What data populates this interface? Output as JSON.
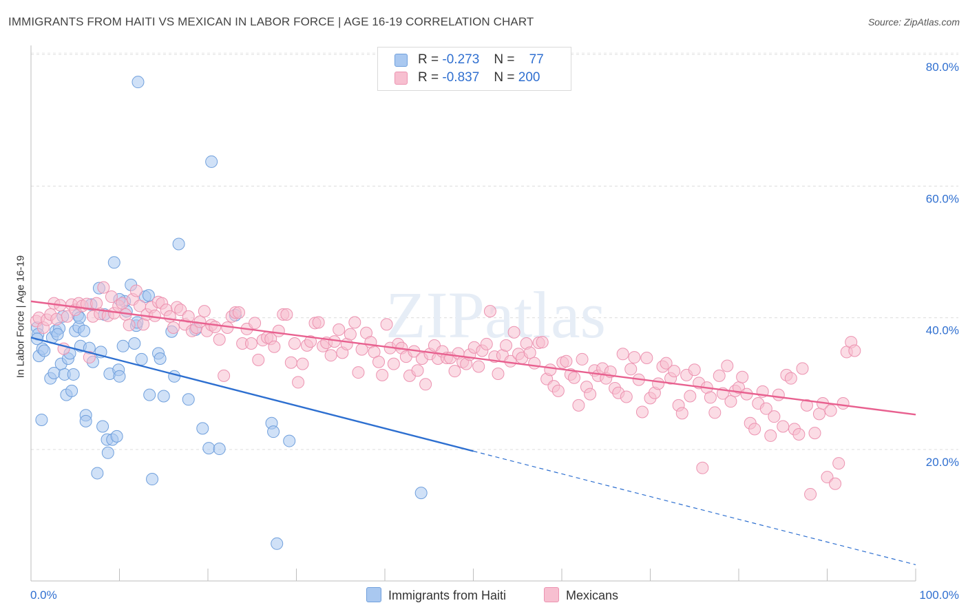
{
  "header": {
    "title": "IMMIGRANTS FROM HAITI VS MEXICAN IN LABOR FORCE | AGE 16-19 CORRELATION CHART",
    "source": "Source: ZipAtlas.com",
    "watermark": "ZIPatlas"
  },
  "legend": {
    "rows": [
      {
        "r_label": "R =",
        "r_value": "-0.273",
        "n_label": "N =",
        "n_value": "77",
        "color": "#a9c8f0"
      },
      {
        "r_label": "R =",
        "r_value": "-0.837",
        "n_label": "N =",
        "n_value": "200",
        "color": "#f7bfd0"
      }
    ]
  },
  "chart_data": {
    "type": "scatter",
    "xlabel": "",
    "ylabel": "In Labor Force | Age 16-19",
    "xlim": [
      0,
      100
    ],
    "ylim": [
      0,
      83
    ],
    "x_tick_labels": [
      {
        "value": 0,
        "label": "0.0%"
      },
      {
        "value": 100,
        "label": "100.0%"
      }
    ],
    "y_tick_labels": [
      {
        "value": 20,
        "label": "20.0%"
      },
      {
        "value": 40,
        "label": "40.0%"
      },
      {
        "value": 60,
        "label": "60.0%"
      },
      {
        "value": 80,
        "label": "80.0%"
      }
    ],
    "grid": "horizontal dashed",
    "legend_position": "top-center",
    "series": [
      {
        "name": "Immigrants from Haiti",
        "color": "#a9c8f0",
        "edge_color": "#6f9fdc",
        "trend_color": "#2d6fd0",
        "trend": {
          "x0": 0,
          "y0": 37.0,
          "x1": 100,
          "y1": 2.5,
          "solid_until": 50
        },
        "points": [
          [
            0.7,
            38.5
          ],
          [
            0.8,
            37.5
          ],
          [
            0.7,
            36.8
          ],
          [
            0.9,
            34.2
          ],
          [
            1.3,
            35.3
          ],
          [
            1.5,
            35.0
          ],
          [
            1.2,
            24.5
          ],
          [
            2.2,
            30.8
          ],
          [
            2.6,
            31.6
          ],
          [
            2.4,
            37.0
          ],
          [
            2.8,
            38.0
          ],
          [
            3.2,
            38.4
          ],
          [
            3.4,
            33.0
          ],
          [
            3.6,
            40.2
          ],
          [
            3.8,
            31.4
          ],
          [
            4.0,
            28.3
          ],
          [
            4.2,
            33.8
          ],
          [
            4.4,
            34.6
          ],
          [
            4.6,
            28.9
          ],
          [
            4.8,
            31.4
          ],
          [
            5.0,
            38.0
          ],
          [
            5.3,
            40.4
          ],
          [
            5.4,
            38.6
          ],
          [
            5.6,
            35.7
          ],
          [
            6.0,
            38.0
          ],
          [
            6.2,
            25.2
          ],
          [
            6.2,
            24.3
          ],
          [
            6.6,
            35.4
          ],
          [
            6.8,
            42.0
          ],
          [
            7.0,
            33.3
          ],
          [
            7.5,
            16.4
          ],
          [
            7.7,
            44.5
          ],
          [
            7.9,
            34.8
          ],
          [
            8.1,
            23.5
          ],
          [
            8.3,
            40.5
          ],
          [
            8.6,
            21.5
          ],
          [
            8.7,
            19.5
          ],
          [
            8.9,
            31.5
          ],
          [
            9.2,
            21.5
          ],
          [
            9.4,
            48.4
          ],
          [
            9.7,
            22.0
          ],
          [
            9.9,
            32.1
          ],
          [
            10.0,
            31.1
          ],
          [
            10.4,
            35.7
          ],
          [
            10.6,
            42.5
          ],
          [
            10.8,
            41.0
          ],
          [
            11.3,
            45.0
          ],
          [
            11.7,
            36.1
          ],
          [
            11.9,
            38.8
          ],
          [
            12.1,
            75.8
          ],
          [
            12.5,
            33.7
          ],
          [
            12.9,
            43.2
          ],
          [
            13.3,
            43.4
          ],
          [
            13.4,
            28.3
          ],
          [
            13.7,
            15.5
          ],
          [
            14.4,
            34.6
          ],
          [
            14.6,
            33.8
          ],
          [
            15.0,
            28.1
          ],
          [
            15.9,
            37.9
          ],
          [
            16.2,
            31.1
          ],
          [
            16.7,
            51.2
          ],
          [
            17.8,
            27.6
          ],
          [
            18.6,
            38.2
          ],
          [
            19.4,
            23.2
          ],
          [
            20.1,
            20.2
          ],
          [
            20.4,
            63.7
          ],
          [
            21.3,
            20.1
          ],
          [
            23.1,
            40.4
          ],
          [
            27.2,
            24.0
          ],
          [
            27.4,
            22.7
          ],
          [
            27.8,
            5.7
          ],
          [
            29.2,
            21.3
          ],
          [
            44.1,
            13.4
          ],
          [
            12.0,
            39.3
          ],
          [
            10.0,
            42.8
          ],
          [
            5.5,
            40.0
          ],
          [
            3.0,
            37.5
          ]
        ]
      },
      {
        "name": "Mexicans",
        "color": "#f7bfd0",
        "edge_color": "#ec92b0",
        "trend_color": "#e8608f",
        "trend": {
          "x0": 0,
          "y0": 42.5,
          "x1": 100,
          "y1": 25.3,
          "solid_until": 100
        },
        "points": [
          [
            0.6,
            39.5
          ],
          [
            0.9,
            40.0
          ],
          [
            1.4,
            38.5
          ],
          [
            1.8,
            39.7
          ],
          [
            2.2,
            40.5
          ],
          [
            2.6,
            42.2
          ],
          [
            2.9,
            39.8
          ],
          [
            3.3,
            41.9
          ],
          [
            3.7,
            35.3
          ],
          [
            4.1,
            40.2
          ],
          [
            4.6,
            42.0
          ],
          [
            5.0,
            41.2
          ],
          [
            5.4,
            42.2
          ],
          [
            5.8,
            41.8
          ],
          [
            6.3,
            42.1
          ],
          [
            6.6,
            34.0
          ],
          [
            7.0,
            40.2
          ],
          [
            7.4,
            42.2
          ],
          [
            7.8,
            40.6
          ],
          [
            8.2,
            44.6
          ],
          [
            8.7,
            40.3
          ],
          [
            9.1,
            43.2
          ],
          [
            9.4,
            40.7
          ],
          [
            9.9,
            41.8
          ],
          [
            10.3,
            42.2
          ],
          [
            10.7,
            40.5
          ],
          [
            11.1,
            38.9
          ],
          [
            11.5,
            42.8
          ],
          [
            11.9,
            44.1
          ],
          [
            12.3,
            41.8
          ],
          [
            12.7,
            39.0
          ],
          [
            13.1,
            40.5
          ],
          [
            13.6,
            41.6
          ],
          [
            14.0,
            40.3
          ],
          [
            14.4,
            42.4
          ],
          [
            14.8,
            42.2
          ],
          [
            15.3,
            41.2
          ],
          [
            15.7,
            40.2
          ],
          [
            16.1,
            38.5
          ],
          [
            16.5,
            41.6
          ],
          [
            16.9,
            41.2
          ],
          [
            17.4,
            39.0
          ],
          [
            17.8,
            40.2
          ],
          [
            18.2,
            38.0
          ],
          [
            18.7,
            38.5
          ],
          [
            19.1,
            39.4
          ],
          [
            19.6,
            41.0
          ],
          [
            19.9,
            38.0
          ],
          [
            20.4,
            38.9
          ],
          [
            20.8,
            38.6
          ],
          [
            21.3,
            36.7
          ],
          [
            21.8,
            31.2
          ],
          [
            22.2,
            38.5
          ],
          [
            22.7,
            40.2
          ],
          [
            23.1,
            40.8
          ],
          [
            23.5,
            40.8
          ],
          [
            23.9,
            36.1
          ],
          [
            24.4,
            38.3
          ],
          [
            24.9,
            36.1
          ],
          [
            25.3,
            39.2
          ],
          [
            25.7,
            33.6
          ],
          [
            26.2,
            36.6
          ],
          [
            26.7,
            37.0
          ],
          [
            27.1,
            36.8
          ],
          [
            27.5,
            35.6
          ],
          [
            28.0,
            38.0
          ],
          [
            28.5,
            40.5
          ],
          [
            28.9,
            40.5
          ],
          [
            29.4,
            33.2
          ],
          [
            29.8,
            36.1
          ],
          [
            30.2,
            30.2
          ],
          [
            30.7,
            33.0
          ],
          [
            31.2,
            35.8
          ],
          [
            31.6,
            36.4
          ],
          [
            32.1,
            39.2
          ],
          [
            32.5,
            39.3
          ],
          [
            33.0,
            35.7
          ],
          [
            33.4,
            36.2
          ],
          [
            33.9,
            34.3
          ],
          [
            34.3,
            36.4
          ],
          [
            34.8,
            38.2
          ],
          [
            35.2,
            34.7
          ],
          [
            35.7,
            36.0
          ],
          [
            36.1,
            37.5
          ],
          [
            36.6,
            39.3
          ],
          [
            37.0,
            31.7
          ],
          [
            37.4,
            35.2
          ],
          [
            37.9,
            37.7
          ],
          [
            38.4,
            36.3
          ],
          [
            38.8,
            34.8
          ],
          [
            39.3,
            33.3
          ],
          [
            39.7,
            31.3
          ],
          [
            40.2,
            39.0
          ],
          [
            40.6,
            35.4
          ],
          [
            41.0,
            33.0
          ],
          [
            41.5,
            36.0
          ],
          [
            41.9,
            35.4
          ],
          [
            42.4,
            34.1
          ],
          [
            42.8,
            31.2
          ],
          [
            43.3,
            34.9
          ],
          [
            43.7,
            32.0
          ],
          [
            44.2,
            33.8
          ],
          [
            44.6,
            29.9
          ],
          [
            45.1,
            34.5
          ],
          [
            45.6,
            35.8
          ],
          [
            46.0,
            33.8
          ],
          [
            46.5,
            34.9
          ],
          [
            47.0,
            33.9
          ],
          [
            47.4,
            33.9
          ],
          [
            47.9,
            31.9
          ],
          [
            48.3,
            34.6
          ],
          [
            48.8,
            33.3
          ],
          [
            49.2,
            33.0
          ],
          [
            49.6,
            34.4
          ],
          [
            50.1,
            35.5
          ],
          [
            50.6,
            32.6
          ],
          [
            51.0,
            35.0
          ],
          [
            51.5,
            36.0
          ],
          [
            51.9,
            41.0
          ],
          [
            52.4,
            34.1
          ],
          [
            52.8,
            31.5
          ],
          [
            53.3,
            34.3
          ],
          [
            53.7,
            35.8
          ],
          [
            54.2,
            33.4
          ],
          [
            54.6,
            37.8
          ],
          [
            55.1,
            34.5
          ],
          [
            55.5,
            33.9
          ],
          [
            56.0,
            36.1
          ],
          [
            56.4,
            34.7
          ],
          [
            56.9,
            33.1
          ],
          [
            57.4,
            36.2
          ],
          [
            57.8,
            36.3
          ],
          [
            58.3,
            30.7
          ],
          [
            58.7,
            32.1
          ],
          [
            59.1,
            29.6
          ],
          [
            59.6,
            28.9
          ],
          [
            60.1,
            33.2
          ],
          [
            60.5,
            33.4
          ],
          [
            61.0,
            31.4
          ],
          [
            61.4,
            30.9
          ],
          [
            61.9,
            26.7
          ],
          [
            62.3,
            33.7
          ],
          [
            62.8,
            29.5
          ],
          [
            63.2,
            28.4
          ],
          [
            63.7,
            32.0
          ],
          [
            64.1,
            31.2
          ],
          [
            64.6,
            32.3
          ],
          [
            65.0,
            30.8
          ],
          [
            65.5,
            31.8
          ],
          [
            66.0,
            29.3
          ],
          [
            66.4,
            28.6
          ],
          [
            66.9,
            34.5
          ],
          [
            67.3,
            28.0
          ],
          [
            67.8,
            32.2
          ],
          [
            68.2,
            34.0
          ],
          [
            68.7,
            30.6
          ],
          [
            69.1,
            25.7
          ],
          [
            69.6,
            33.9
          ],
          [
            70.0,
            27.8
          ],
          [
            70.5,
            28.6
          ],
          [
            70.9,
            30.0
          ],
          [
            71.4,
            32.6
          ],
          [
            71.8,
            33.1
          ],
          [
            72.3,
            30.8
          ],
          [
            72.7,
            31.9
          ],
          [
            73.2,
            26.7
          ],
          [
            73.6,
            25.5
          ],
          [
            74.1,
            31.3
          ],
          [
            74.5,
            28.1
          ],
          [
            75.0,
            32.1
          ],
          [
            75.5,
            30.1
          ],
          [
            75.9,
            17.2
          ],
          [
            76.4,
            29.4
          ],
          [
            76.8,
            27.9
          ],
          [
            77.3,
            25.6
          ],
          [
            77.8,
            31.2
          ],
          [
            78.2,
            28.5
          ],
          [
            78.7,
            32.7
          ],
          [
            79.1,
            27.3
          ],
          [
            79.6,
            28.9
          ],
          [
            80.0,
            29.4
          ],
          [
            80.4,
            31.0
          ],
          [
            80.9,
            28.4
          ],
          [
            81.3,
            24.0
          ],
          [
            81.8,
            23.1
          ],
          [
            82.2,
            27.0
          ],
          [
            82.7,
            28.8
          ],
          [
            83.1,
            26.2
          ],
          [
            83.6,
            22.1
          ],
          [
            84.0,
            25.0
          ],
          [
            84.5,
            28.3
          ],
          [
            85.0,
            23.5
          ],
          [
            85.4,
            31.3
          ],
          [
            85.9,
            30.8
          ],
          [
            86.3,
            23.1
          ],
          [
            86.8,
            22.3
          ],
          [
            87.2,
            32.3
          ],
          [
            87.7,
            26.7
          ],
          [
            88.1,
            13.2
          ],
          [
            88.6,
            22.5
          ],
          [
            89.1,
            25.4
          ],
          [
            89.5,
            27.0
          ],
          [
            90.0,
            15.8
          ],
          [
            90.4,
            25.9
          ],
          [
            90.9,
            14.8
          ],
          [
            91.3,
            17.9
          ],
          [
            91.8,
            27.0
          ],
          [
            92.2,
            34.8
          ],
          [
            92.7,
            36.3
          ],
          [
            93.1,
            35.0
          ]
        ]
      }
    ]
  },
  "bottom_legend": [
    {
      "label": "Immigrants from Haiti",
      "color": "#a9c8f0"
    },
    {
      "label": "Mexicans",
      "color": "#f7bfd0"
    }
  ]
}
